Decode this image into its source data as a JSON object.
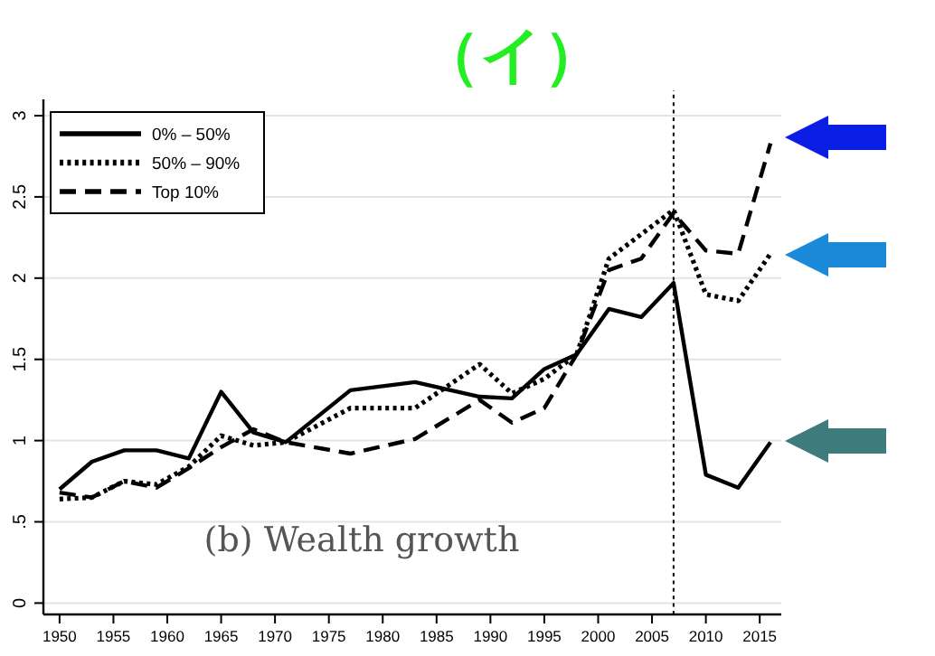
{
  "chart_data": {
    "type": "line",
    "title": "（イ）",
    "x": [
      1950,
      1953,
      1956,
      1959,
      1962,
      1965,
      1968,
      1971,
      1977,
      1983,
      1989,
      1992,
      1995,
      1998,
      2001,
      2004,
      2007,
      2010,
      2013,
      2016
    ],
    "series": [
      {
        "name": "0% – 50%",
        "color": "#000000",
        "line_style": "solid",
        "values": [
          0.7,
          0.87,
          0.94,
          0.94,
          0.89,
          1.3,
          1.05,
          0.99,
          1.31,
          1.36,
          1.27,
          1.26,
          1.44,
          1.53,
          1.81,
          1.76,
          1.97,
          0.79,
          0.71,
          0.99
        ]
      },
      {
        "name": "50% – 90%",
        "color": "#000000",
        "line_style": "dotted",
        "values": [
          0.64,
          0.65,
          0.75,
          0.73,
          0.84,
          1.03,
          0.97,
          0.99,
          1.2,
          1.2,
          1.47,
          1.29,
          1.38,
          1.53,
          2.12,
          2.27,
          2.42,
          1.9,
          1.86,
          2.15
        ]
      },
      {
        "name": "Top 10%",
        "color": "#000000",
        "line_style": "dashed",
        "values": [
          0.68,
          0.65,
          0.75,
          0.71,
          0.83,
          0.96,
          1.07,
          0.99,
          0.92,
          1.01,
          1.25,
          1.11,
          1.2,
          1.53,
          2.05,
          2.12,
          2.4,
          2.17,
          2.15,
          2.83
        ]
      }
    ],
    "xlim": [
      1948.5,
      2017
    ],
    "ylim": [
      -0.07,
      3.1
    ],
    "xticks": [
      1950,
      1955,
      1960,
      1965,
      1970,
      1975,
      1980,
      1985,
      1990,
      1995,
      2000,
      2005,
      2010,
      2015
    ],
    "yticks": [
      0,
      {
        "value": 0.5,
        "label": ".5"
      },
      1,
      1.5,
      2,
      2.5,
      3
    ],
    "grid": "y",
    "legend": "top left",
    "marker": "none",
    "ref_lines": [
      {
        "axis": "x",
        "value": 2007,
        "line_style": "dotted",
        "color": "#000000"
      }
    ],
    "annotations": [
      "(b) Wealth growth"
    ]
  }
}
